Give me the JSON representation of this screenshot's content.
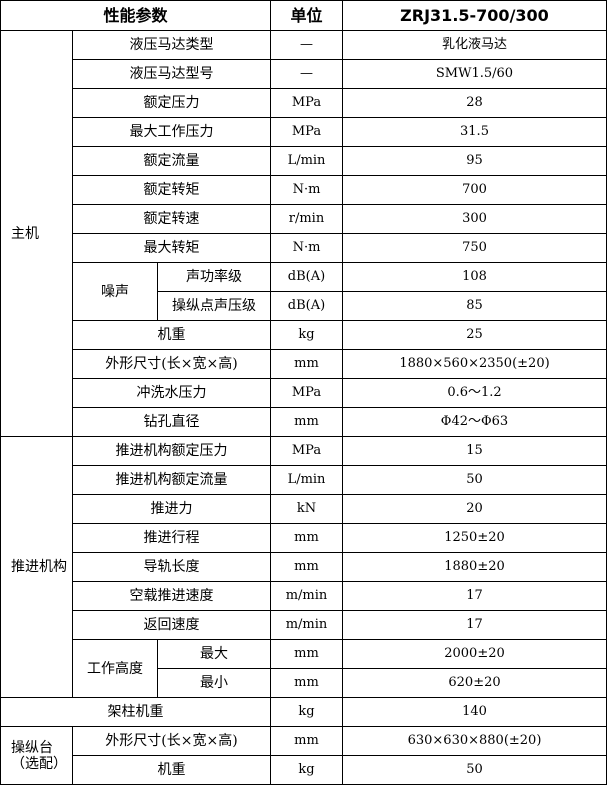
{
  "header": {
    "param": "性能参数",
    "unit": "单位",
    "model": "ZRJ31.5-700/300"
  },
  "groups": [
    {
      "label": "主机",
      "items": [
        {
          "param": "液压马达类型",
          "unit": "—",
          "value": "乳化液马达"
        },
        {
          "param": "液压马达型号",
          "unit": "—",
          "value": "SMW1.5/60"
        },
        {
          "param": "额定压力",
          "unit": "MPa",
          "value": "28"
        },
        {
          "param": "最大工作压力",
          "unit": "MPa",
          "value": "31.5"
        },
        {
          "param": "额定流量",
          "unit": "L/min",
          "value": "95"
        },
        {
          "param": "额定转矩",
          "unit": "N·m",
          "value": "700"
        },
        {
          "param": "额定转速",
          "unit": "r/min",
          "value": "300"
        },
        {
          "param": "最大转矩",
          "unit": "N·m",
          "value": "750"
        },
        {
          "param": "噪声",
          "sub": [
            {
              "param": "声功率级",
              "unit": "dB(A)",
              "value": "108"
            },
            {
              "param": "操纵点声压级",
              "unit": "dB(A)",
              "value": "85"
            }
          ]
        },
        {
          "param": "机重",
          "unit": "kg",
          "value": "25"
        },
        {
          "param": "外形尺寸(长×宽×高)",
          "unit": "mm",
          "value": "1880×560×2350(±20)"
        },
        {
          "param": "冲洗水压力",
          "unit": "MPa",
          "value": "0.6～1.2"
        },
        {
          "param": "钻孔直径",
          "unit": "mm",
          "value": "Φ42～Φ63"
        }
      ]
    },
    {
      "label": "推进机构",
      "items": [
        {
          "param": "推进机构额定压力",
          "unit": "MPa",
          "value": "15"
        },
        {
          "param": "推进机构额定流量",
          "unit": "L/min",
          "value": "50"
        },
        {
          "param": "推进力",
          "unit": "kN",
          "value": "20"
        },
        {
          "param": "推进行程",
          "unit": "mm",
          "value": "1250±20"
        },
        {
          "param": "导轨长度",
          "unit": "mm",
          "value": "1880±20"
        },
        {
          "param": "空载推进速度",
          "unit": "m/min",
          "value": "17"
        },
        {
          "param": "返回速度",
          "unit": "m/min",
          "value": "17"
        },
        {
          "param": "工作高度",
          "sub": [
            {
              "param": "最大",
              "unit": "mm",
              "value": "2000±20"
            },
            {
              "param": "最小",
              "unit": "mm",
              "value": "620±20"
            }
          ]
        }
      ]
    },
    {
      "label": null,
      "items": [
        {
          "param": "架柱机重",
          "unit": "kg",
          "value": "140"
        }
      ]
    },
    {
      "label": "操纵台（选配）",
      "items": [
        {
          "param": "外形尺寸(长×宽×高)",
          "unit": "mm",
          "value": "630×630×880(±20)"
        },
        {
          "param": "机重",
          "unit": "kg",
          "value": "50"
        }
      ]
    }
  ]
}
